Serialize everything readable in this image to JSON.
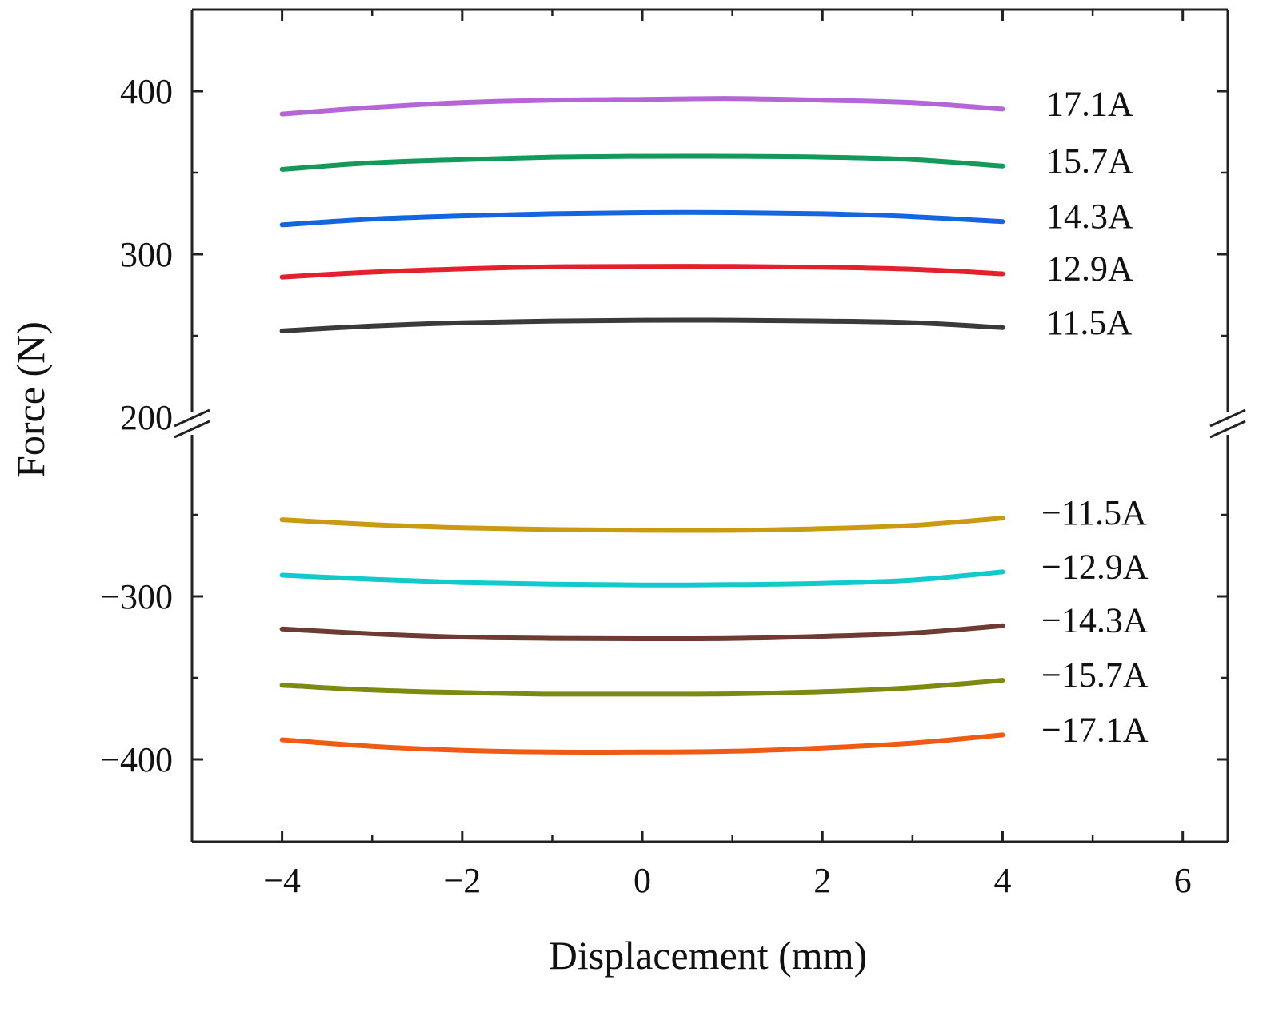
{
  "chart_data": {
    "type": "line",
    "title": "",
    "xlabel": "Displacement (mm)",
    "ylabel": "Force (N)",
    "xlim": [
      -5,
      6.5
    ],
    "xticks": [
      -4,
      -2,
      0,
      2,
      4,
      6
    ],
    "xtick_labels": [
      "−4",
      "−2",
      "0",
      "2",
      "4",
      "6"
    ],
    "ylim_upper": [
      200,
      450
    ],
    "ylim_lower": [
      -450,
      -200
    ],
    "yticks": [
      400,
      300,
      200,
      -300,
      -400
    ],
    "ytick_labels": [
      "400",
      "300",
      "200",
      "−300",
      "−400"
    ],
    "axis_break": true,
    "x": [
      -4,
      -3,
      -2,
      -1,
      0,
      1,
      2,
      3,
      4
    ],
    "series": [
      {
        "name": "17.1A",
        "color": "#b565d8",
        "values": [
          386,
          390,
          393,
          394.5,
          395,
          395.5,
          394.5,
          393,
          389
        ]
      },
      {
        "name": "15.7A",
        "color": "#139a5a",
        "values": [
          352,
          356,
          358,
          359.5,
          360,
          360,
          359.5,
          358,
          354
        ]
      },
      {
        "name": "14.3A",
        "color": "#1565e0",
        "values": [
          318,
          321.5,
          323.5,
          324.8,
          325.5,
          325.5,
          324.8,
          323,
          320
        ]
      },
      {
        "name": "12.9A",
        "color": "#e4202e",
        "values": [
          286,
          289,
          291,
          292.3,
          292.5,
          292.5,
          292,
          290.8,
          288
        ]
      },
      {
        "name": "11.5A",
        "color": "#3a3a3a",
        "values": [
          253,
          256,
          258,
          259,
          259.5,
          259.5,
          259,
          258,
          255
        ]
      },
      {
        "name": "−11.5A",
        "color": "#c99a12",
        "values": [
          -253,
          -256,
          -258,
          -259,
          -259.5,
          -259.5,
          -258.5,
          -256.5,
          -252
        ]
      },
      {
        "name": "−12.9A",
        "color": "#12c9cc",
        "values": [
          -287,
          -289.5,
          -291.5,
          -292.5,
          -293,
          -292.8,
          -292,
          -290,
          -285
        ]
      },
      {
        "name": "−14.3A",
        "color": "#6e3a32",
        "values": [
          -320,
          -323,
          -325,
          -325.8,
          -326,
          -325.8,
          -324.5,
          -322.5,
          -318
        ]
      },
      {
        "name": "−15.7A",
        "color": "#7c8a12",
        "values": [
          -354.5,
          -357.5,
          -359,
          -360,
          -360,
          -359.8,
          -358.5,
          -356,
          -351.5
        ]
      },
      {
        "name": "−17.1A",
        "color": "#ef5a15",
        "values": [
          -388,
          -392,
          -394.5,
          -395.5,
          -395.5,
          -395,
          -393,
          -390,
          -385
        ]
      }
    ]
  }
}
